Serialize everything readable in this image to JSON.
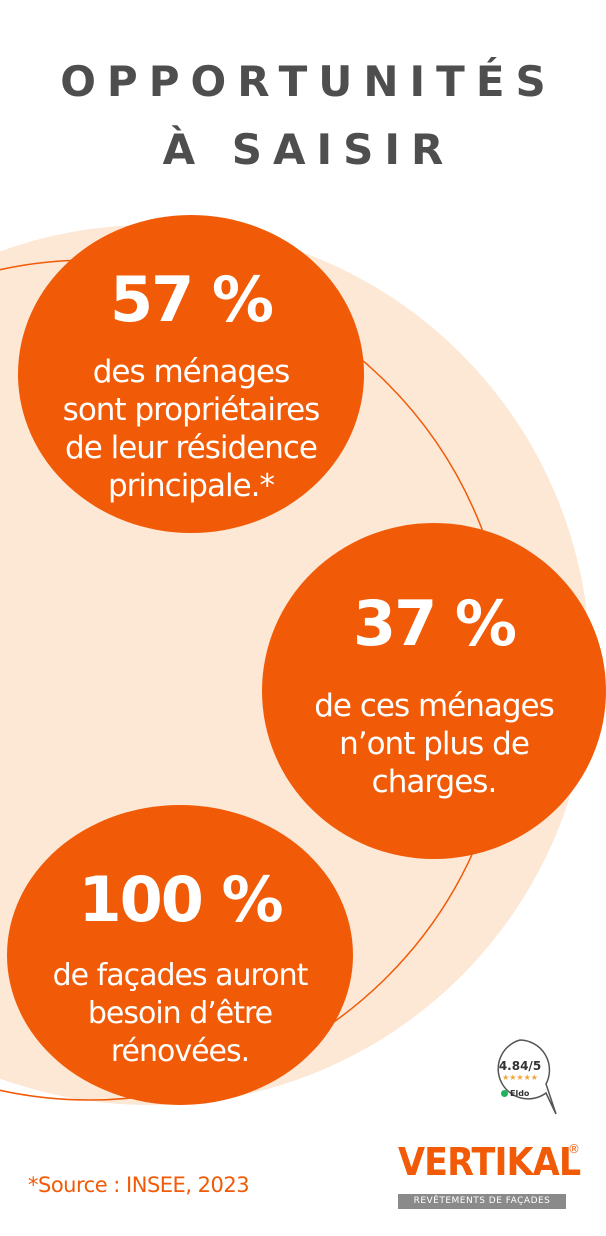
{
  "title": {
    "line1": "OPPORTUNITÉS",
    "line2": "À SAISIR"
  },
  "colors": {
    "accent": "#f15a06",
    "background_circle": "#fde7d5",
    "title": "#4e4e4e"
  },
  "stats": [
    {
      "value": "57 %",
      "description_lines": [
        "des ménages",
        "sont propriétaires",
        "de leur résidence",
        "principale.*"
      ]
    },
    {
      "value": "37 %",
      "description_lines": [
        "de ces ménages",
        "n’ont plus de",
        "charges."
      ]
    },
    {
      "value": "100 %",
      "description_lines": [
        "de façades auront",
        "besoin d’être",
        "rénovées."
      ]
    }
  ],
  "source": "*Source : INSEE, 2023",
  "rating": {
    "score": "4.84/5",
    "stars": "★★★★★",
    "provider": "Eldo"
  },
  "logo": {
    "brand": "VERTIKAL",
    "registered": "®",
    "tagline": "REVÊTEMENTS DE FAÇADES"
  }
}
